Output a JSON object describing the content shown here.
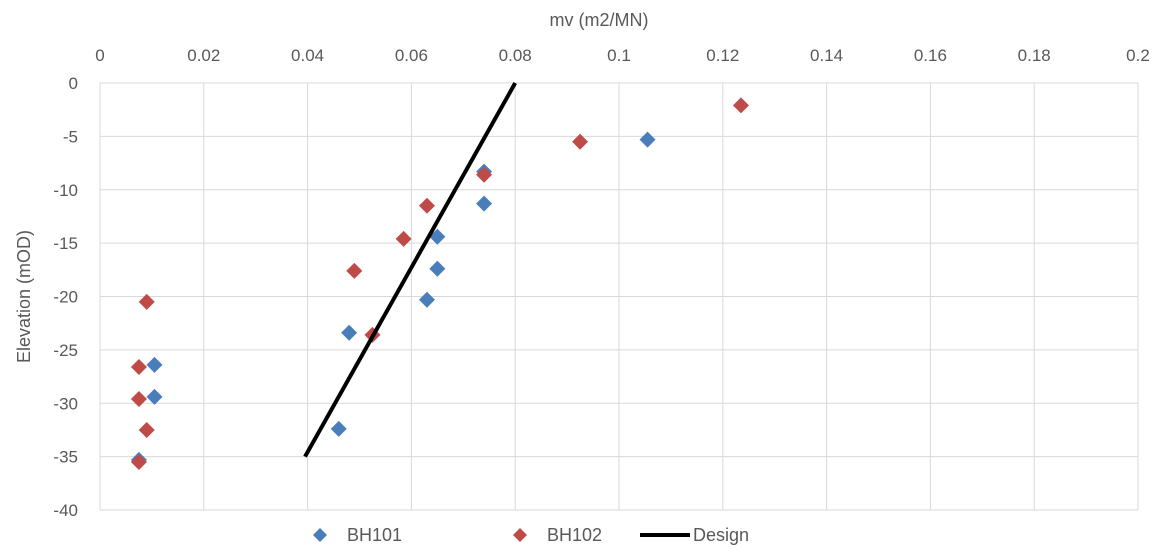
{
  "chart_data": {
    "type": "scatter",
    "xlabel": "mv (m2/MN)",
    "ylabel": "Elevation (mOD)",
    "x_axis_position": "top",
    "xlim": [
      0,
      0.2
    ],
    "ylim": [
      -40,
      0
    ],
    "x_ticks": [
      0,
      0.02,
      0.04,
      0.06,
      0.08,
      0.1,
      0.12,
      0.14,
      0.16,
      0.18,
      0.2
    ],
    "x_tick_labels": [
      "0",
      "0.02",
      "0.04",
      "0.06",
      "0.08",
      "0.1",
      "0.12",
      "0.14",
      "0.16",
      "0.18",
      "0.2"
    ],
    "y_ticks": [
      0,
      -5,
      -10,
      -15,
      -20,
      -25,
      -30,
      -35,
      -40
    ],
    "y_tick_labels": [
      "0",
      "-5",
      "-10",
      "-15",
      "-20",
      "-25",
      "-30",
      "-35",
      "-40"
    ],
    "grid": true,
    "legend_position": "bottom",
    "series": [
      {
        "name": "BH101",
        "kind": "markers",
        "marker": "diamond",
        "color": "#4a7ebb",
        "points": [
          {
            "x": 0.1055,
            "y": -5.3
          },
          {
            "x": 0.074,
            "y": -8.3
          },
          {
            "x": 0.074,
            "y": -11.3
          },
          {
            "x": 0.065,
            "y": -14.4
          },
          {
            "x": 0.065,
            "y": -17.4
          },
          {
            "x": 0.063,
            "y": -20.3
          },
          {
            "x": 0.048,
            "y": -23.4
          },
          {
            "x": 0.0105,
            "y": -26.4
          },
          {
            "x": 0.0105,
            "y": -29.4
          },
          {
            "x": 0.046,
            "y": -32.4
          },
          {
            "x": 0.0075,
            "y": -35.3
          }
        ]
      },
      {
        "name": "BH102",
        "kind": "markers",
        "marker": "diamond",
        "color": "#be4b48",
        "points": [
          {
            "x": 0.1235,
            "y": -2.1
          },
          {
            "x": 0.0925,
            "y": -5.5
          },
          {
            "x": 0.074,
            "y": -8.6
          },
          {
            "x": 0.063,
            "y": -11.5
          },
          {
            "x": 0.0585,
            "y": -14.6
          },
          {
            "x": 0.049,
            "y": -17.6
          },
          {
            "x": 0.009,
            "y": -20.5
          },
          {
            "x": 0.0525,
            "y": -23.6
          },
          {
            "x": 0.0075,
            "y": -26.6
          },
          {
            "x": 0.0075,
            "y": -29.6
          },
          {
            "x": 0.009,
            "y": -32.5
          },
          {
            "x": 0.0075,
            "y": -35.5
          }
        ]
      },
      {
        "name": "Design",
        "kind": "line",
        "color": "#000000",
        "points": [
          {
            "x": 0.0395,
            "y": -35
          },
          {
            "x": 0.08,
            "y": 0
          }
        ]
      }
    ]
  }
}
